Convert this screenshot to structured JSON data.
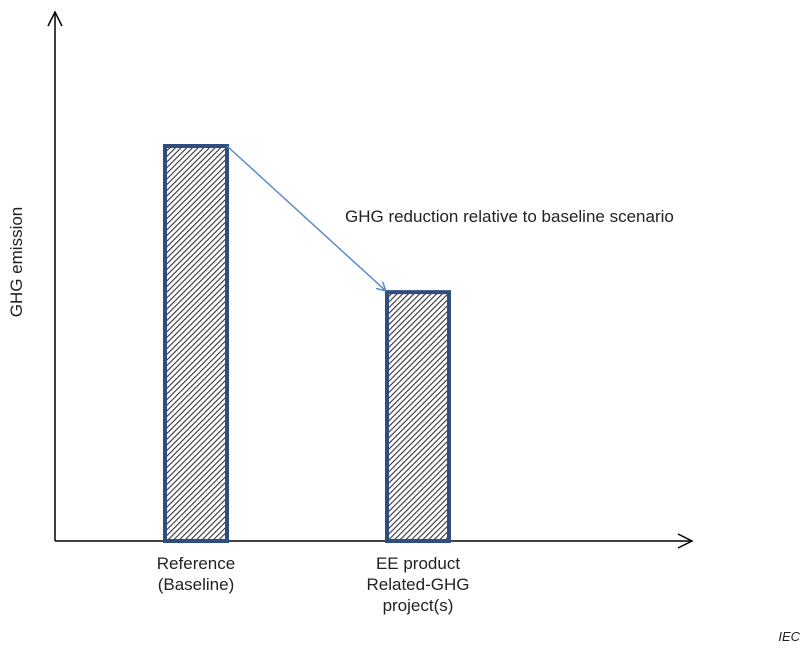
{
  "chart_data": {
    "type": "bar",
    "categories": [
      [
        "Reference",
        "(Baseline)"
      ],
      [
        "EE product",
        "Related-GHG",
        "project(s)"
      ]
    ],
    "values": [
      100,
      63
    ],
    "ylabel": "GHG emission",
    "xlabel": "",
    "ylim": [
      0,
      100
    ],
    "grid": false,
    "annotation": {
      "text": "GHG reduction relative to baseline scenario",
      "from_category": 0,
      "to_category": 1
    },
    "credit": "IEC",
    "colors": {
      "bar_outline": "#2f4d7e",
      "hatch": "#333333",
      "arrow": "#5b8bc9",
      "axis": "#000000"
    }
  }
}
